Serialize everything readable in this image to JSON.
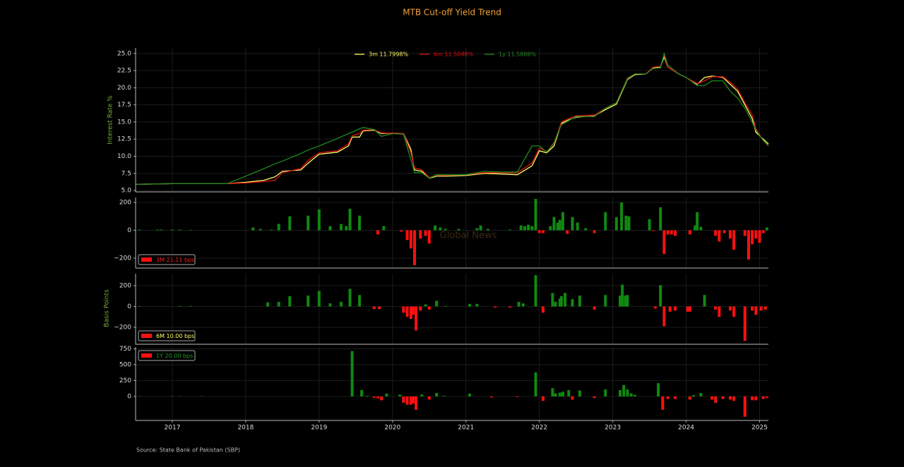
{
  "title": "MTB Cut-off Yield Trend",
  "source": "Source: State Bank of Pakistan (SBP)",
  "chart_data": [
    {
      "type": "line",
      "ylabel": "Interest Rate %",
      "legend": "upper center",
      "grid": true,
      "xlim": [
        2016.5,
        2025.12
      ],
      "ylim": [
        4.8,
        25.8
      ],
      "yticks": [
        {
          "value": 5,
          "label": "5.0"
        },
        7.5,
        {
          "value": 10,
          "label": "10.0"
        },
        12.5,
        {
          "value": 15,
          "label": "15.0"
        },
        17.5,
        {
          "value": 20,
          "label": "20.0"
        },
        22.5,
        {
          "value": 25,
          "label": "25.0"
        }
      ],
      "x": [
        2016.5,
        2017.0,
        2017.5,
        2017.75,
        2018.0,
        2018.25,
        2018.4,
        2018.5,
        2018.75,
        2018.85,
        2019.0,
        2019.25,
        2019.4,
        2019.45,
        2019.55,
        2019.6,
        2019.75,
        2019.85,
        2020.0,
        2020.15,
        2020.25,
        2020.3,
        2020.4,
        2020.5,
        2020.6,
        2020.75,
        2021.0,
        2021.25,
        2021.5,
        2021.7,
        2021.9,
        2022.0,
        2022.1,
        2022.2,
        2022.3,
        2022.4,
        2022.5,
        2022.75,
        2022.9,
        2023.05,
        2023.2,
        2023.3,
        2023.45,
        2023.55,
        2023.65,
        2023.7,
        2023.75,
        2023.9,
        2024.0,
        2024.15,
        2024.25,
        2024.35,
        2024.5,
        2024.6,
        2024.7,
        2024.8,
        2024.9,
        2024.95,
        2025.05,
        2025.12
      ],
      "series": [
        {
          "name": "3m 11.7998%",
          "color": "#ffff66",
          "values": [
            5.9,
            6.0,
            6.0,
            6.0,
            6.2,
            6.5,
            7.0,
            7.8,
            8.0,
            9.0,
            10.3,
            10.6,
            11.5,
            12.8,
            12.8,
            13.7,
            13.8,
            13.3,
            13.4,
            13.3,
            11.0,
            8.0,
            7.8,
            6.8,
            7.1,
            7.1,
            7.2,
            7.5,
            7.4,
            7.3,
            8.6,
            10.8,
            10.5,
            11.5,
            14.8,
            15.3,
            15.7,
            15.9,
            16.8,
            17.6,
            21.2,
            21.9,
            22.0,
            22.9,
            23.0,
            24.5,
            23.0,
            22.0,
            21.5,
            20.5,
            21.5,
            21.7,
            21.5,
            20.5,
            19.5,
            17.5,
            15.5,
            13.5,
            12.5,
            11.8
          ]
        },
        {
          "name": "6m 11.5048%",
          "color": "#e01010",
          "values": [
            5.9,
            6.0,
            6.0,
            6.0,
            6.1,
            6.3,
            6.5,
            7.6,
            8.2,
            9.4,
            10.5,
            10.8,
            11.8,
            13.0,
            13.3,
            13.8,
            13.9,
            13.4,
            13.4,
            13.3,
            10.5,
            8.3,
            8.0,
            6.9,
            7.2,
            7.2,
            7.3,
            7.6,
            7.6,
            7.6,
            9.0,
            11.2,
            10.7,
            11.8,
            15.0,
            15.5,
            15.9,
            16.0,
            17.0,
            17.8,
            21.4,
            22.0,
            22.0,
            23.0,
            23.1,
            24.8,
            23.0,
            22.0,
            21.5,
            20.6,
            21.0,
            21.6,
            21.6,
            20.8,
            19.8,
            17.8,
            16.0,
            14.0,
            12.3,
            11.5
          ]
        },
        {
          "name": "1y 11.5888%",
          "color": "#1f8a1f",
          "values": [
            5.9,
            6.0,
            6.0,
            6.0,
            7.1,
            8.2,
            8.9,
            9.3,
            10.4,
            10.9,
            11.5,
            12.6,
            13.3,
            13.5,
            14.0,
            14.2,
            13.9,
            12.9,
            13.3,
            13.2,
            9.5,
            7.6,
            7.6,
            6.8,
            7.3,
            7.3,
            7.3,
            7.8,
            7.7,
            7.7,
            11.5,
            11.5,
            10.6,
            12.0,
            14.6,
            15.2,
            15.8,
            15.8,
            17.0,
            17.8,
            21.3,
            22.0,
            22.0,
            22.8,
            22.9,
            25.0,
            23.3,
            22.0,
            21.5,
            20.3,
            20.3,
            21.0,
            21.0,
            19.5,
            18.5,
            17.0,
            15.0,
            13.8,
            12.3,
            11.6
          ]
        }
      ]
    },
    {
      "type": "bar",
      "legend": "lower left",
      "grid": true,
      "annotation": "Global News",
      "positive_color": "#118811",
      "negative_color": "#ff1010",
      "xlim": [
        2016.5,
        2025.12
      ],
      "ylim": [
        -271,
        235
      ],
      "yticks": [
        {
          "value": -200,
          "label": "−200"
        },
        0,
        200
      ],
      "x": [
        2016.55,
        2016.8,
        2016.85,
        2017.0,
        2017.1,
        2017.25,
        2018.1,
        2018.2,
        2018.35,
        2018.45,
        2018.6,
        2018.85,
        2019.0,
        2019.15,
        2019.3,
        2019.37,
        2019.42,
        2019.55,
        2019.8,
        2019.88,
        2020.12,
        2020.2,
        2020.25,
        2020.3,
        2020.38,
        2020.45,
        2020.5,
        2020.58,
        2020.65,
        2020.72,
        2020.9,
        2021.15,
        2021.2,
        2021.3,
        2021.6,
        2021.75,
        2021.8,
        2021.85,
        2021.9,
        2021.95,
        2022.0,
        2022.05,
        2022.15,
        2022.2,
        2022.25,
        2022.28,
        2022.32,
        2022.38,
        2022.45,
        2022.52,
        2022.63,
        2022.75,
        2022.9,
        2023.05,
        2023.12,
        2023.18,
        2023.22,
        2023.5,
        2023.55,
        2023.65,
        2023.7,
        2023.75,
        2023.8,
        2023.85,
        2024.05,
        2024.12,
        2024.15,
        2024.2,
        2024.4,
        2024.45,
        2024.52,
        2024.6,
        2024.65,
        2024.8,
        2024.85,
        2024.9,
        2024.95,
        2025.0,
        2025.05,
        2025.1
      ],
      "series": [
        {
          "name": "3M 21.11 bps",
          "color": "#ff1010",
          "label_color": "#ff2020",
          "values": [
            5,
            5,
            5,
            5,
            5,
            3,
            20,
            10,
            5,
            46,
            100,
            105,
            150,
            30,
            45,
            30,
            155,
            105,
            -30,
            30,
            -10,
            -70,
            -130,
            -250,
            -60,
            -40,
            -95,
            35,
            20,
            10,
            10,
            15,
            35,
            10,
            5,
            35,
            30,
            40,
            30,
            225,
            -20,
            -20,
            30,
            95,
            55,
            75,
            130,
            -25,
            95,
            55,
            15,
            -20,
            130,
            95,
            200,
            105,
            100,
            80,
            -5,
            165,
            -170,
            -30,
            -30,
            -40,
            -30,
            35,
            130,
            25,
            -40,
            -80,
            -20,
            -60,
            -140,
            -40,
            -210,
            -100,
            -60,
            -90,
            -20,
            20
          ]
        }
      ]
    },
    {
      "type": "bar",
      "legend": "lower left",
      "grid": true,
      "ylabel": "Basis Points",
      "positive_color": "#118811",
      "negative_color": "#ff1010",
      "xlim": [
        2016.5,
        2025.12
      ],
      "ylim": [
        -363,
        315
      ],
      "yticks": [
        {
          "value": -200,
          "label": "−200"
        },
        0,
        200
      ],
      "x": [
        2016.55,
        2017.1,
        2017.25,
        2018.3,
        2018.45,
        2018.6,
        2018.85,
        2019.0,
        2019.15,
        2019.3,
        2019.42,
        2019.55,
        2019.75,
        2019.82,
        2020.15,
        2020.2,
        2020.25,
        2020.28,
        2020.32,
        2020.38,
        2020.45,
        2020.5,
        2020.6,
        2020.72,
        2021.05,
        2021.15,
        2021.4,
        2021.6,
        2021.72,
        2021.78,
        2021.95,
        2022.05,
        2022.18,
        2022.22,
        2022.28,
        2022.3,
        2022.35,
        2022.45,
        2022.55,
        2022.75,
        2022.9,
        2023.1,
        2023.13,
        2023.17,
        2023.2,
        2023.58,
        2023.65,
        2023.7,
        2023.78,
        2023.85,
        2024.02,
        2024.05,
        2024.25,
        2024.4,
        2024.45,
        2024.6,
        2024.65,
        2024.8,
        2024.9,
        2024.95,
        2025.02,
        2025.08
      ],
      "series": [
        {
          "name": "6M 10.00 bps",
          "color": "#ff1010",
          "label_color": "#ffff66",
          "values": [
            5,
            5,
            5,
            40,
            45,
            100,
            105,
            150,
            30,
            45,
            170,
            110,
            -25,
            -25,
            -60,
            -100,
            -120,
            -80,
            -230,
            -40,
            20,
            -30,
            55,
            5,
            25,
            25,
            -10,
            -10,
            45,
            30,
            300,
            -60,
            130,
            45,
            75,
            100,
            130,
            70,
            105,
            -30,
            110,
            105,
            210,
            105,
            110,
            -20,
            205,
            -190,
            -50,
            -40,
            -50,
            -50,
            110,
            -30,
            -100,
            -40,
            -100,
            -330,
            -40,
            -80,
            -40,
            -30
          ]
        }
      ]
    },
    {
      "type": "bar",
      "legend": "upper left",
      "grid": true,
      "positive_color": "#118811",
      "negative_color": "#ff1010",
      "xlim": [
        2016.5,
        2025.12
      ],
      "ylim": [
        -378,
        778
      ],
      "yticks": [
        0,
        250,
        500,
        750
      ],
      "xticks": [
        2017,
        2018,
        2019,
        2020,
        2021,
        2022,
        2023,
        2024,
        2025
      ],
      "x": [
        2016.55,
        2017.0,
        2017.1,
        2017.4,
        2019.45,
        2019.58,
        2019.65,
        2019.75,
        2019.8,
        2019.85,
        2019.92,
        2020.1,
        2020.15,
        2020.2,
        2020.25,
        2020.28,
        2020.32,
        2020.4,
        2020.5,
        2020.6,
        2020.7,
        2021.05,
        2021.35,
        2021.7,
        2021.95,
        2022.05,
        2022.18,
        2022.22,
        2022.28,
        2022.32,
        2022.4,
        2022.45,
        2022.55,
        2022.75,
        2022.9,
        2023.1,
        2023.15,
        2023.2,
        2023.25,
        2023.3,
        2023.62,
        2023.68,
        2023.75,
        2023.85,
        2024.05,
        2024.1,
        2024.2,
        2024.35,
        2024.4,
        2024.5,
        2024.6,
        2024.65,
        2024.8,
        2024.9,
        2024.95,
        2025.05,
        2025.1
      ],
      "series": [
        {
          "name": "1Y 20.00 bps",
          "color": "#ff1010",
          "label_color": "#1f9a1f",
          "values": [
            5,
            5,
            5,
            5,
            715,
            100,
            10,
            -20,
            -30,
            -60,
            45,
            30,
            -100,
            -130,
            -130,
            -110,
            -210,
            30,
            -50,
            55,
            10,
            45,
            -15,
            -10,
            380,
            -70,
            130,
            50,
            60,
            75,
            100,
            -50,
            95,
            -25,
            110,
            100,
            180,
            110,
            50,
            25,
            210,
            -210,
            -40,
            -40,
            -50,
            20,
            55,
            -50,
            -100,
            -40,
            -50,
            -70,
            -320,
            -60,
            -60,
            -40,
            -20
          ]
        }
      ]
    }
  ]
}
